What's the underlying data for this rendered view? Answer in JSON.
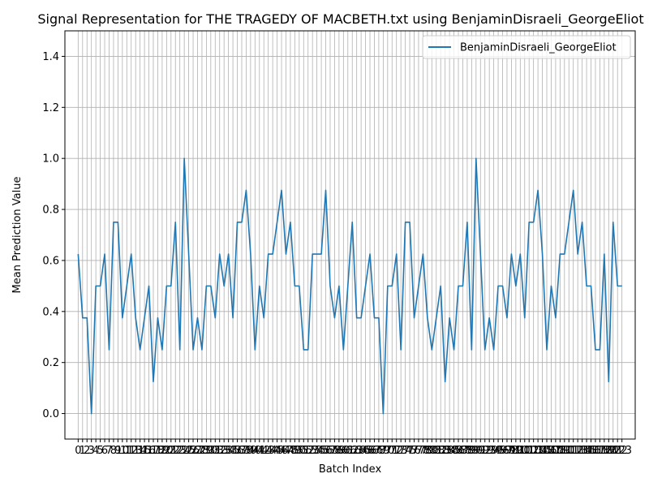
{
  "chart_data": {
    "type": "line",
    "title": "Signal Representation for THE TRAGEDY OF MACBETH.txt using BenjaminDisraeli_GeorgeEliot",
    "xlabel": "Batch Index",
    "ylabel": "Mean Prediction Value",
    "xlim": [
      -3,
      126
    ],
    "ylim": [
      -0.1,
      1.5
    ],
    "yticks": [
      0.0,
      0.2,
      0.4,
      0.6,
      0.8,
      1.0,
      1.2,
      1.4
    ],
    "ytick_labels": [
      "0.0",
      "0.2",
      "0.4",
      "0.6",
      "0.8",
      "1.0",
      "1.2",
      "1.4"
    ],
    "grid": true,
    "legend_position": "top-right",
    "series": [
      {
        "name": "BenjaminDisraeli_GeorgeEliot",
        "color": "#1f77b4",
        "x": [
          0,
          1,
          2,
          3,
          4,
          5,
          6,
          7,
          8,
          9,
          10,
          11,
          12,
          13,
          14,
          15,
          16,
          17,
          18,
          19,
          20,
          21,
          22,
          23,
          24,
          25,
          26,
          27,
          28,
          29,
          30,
          31,
          32,
          33,
          34,
          35,
          36,
          37,
          38,
          39,
          40,
          41,
          42,
          43,
          44,
          45,
          46,
          47,
          48,
          49,
          50,
          51,
          52,
          53,
          54,
          55,
          56,
          57,
          58,
          59,
          60,
          61,
          62,
          63,
          64,
          65,
          66,
          67,
          68,
          69,
          70,
          71,
          72,
          73,
          74,
          75,
          76,
          77,
          78,
          79,
          80,
          81,
          82,
          83,
          84,
          85,
          86,
          87,
          88,
          89,
          90,
          91,
          92,
          93,
          94,
          95,
          96,
          97,
          98,
          99,
          100,
          101,
          102,
          103,
          104,
          105,
          106,
          107,
          108,
          109,
          110,
          111,
          112,
          113,
          114,
          115,
          116,
          117,
          118,
          119,
          120,
          121,
          122,
          123
        ],
        "values": [
          0.625,
          0.375,
          0.375,
          0.0,
          0.5,
          0.5,
          0.625,
          0.25,
          0.75,
          0.75,
          0.375,
          0.5,
          0.625,
          0.375,
          0.25,
          0.375,
          0.5,
          0.125,
          0.375,
          0.25,
          0.5,
          0.5,
          0.75,
          0.25,
          1.0,
          0.625,
          0.25,
          0.375,
          0.25,
          0.5,
          0.5,
          0.375,
          0.625,
          0.5,
          0.625,
          0.375,
          0.75,
          0.75,
          0.875,
          0.625,
          0.25,
          0.5,
          0.375,
          0.625,
          0.625,
          0.75,
          0.875,
          0.625,
          0.75,
          0.5,
          0.5,
          0.25,
          0.25,
          0.625,
          0.625,
          0.625,
          0.875,
          0.5,
          0.375,
          0.5,
          0.25,
          0.5,
          0.75,
          0.375,
          0.375,
          0.5,
          0.625,
          0.375,
          0.375,
          0.0,
          0.5,
          0.5,
          0.625,
          0.25,
          0.75,
          0.75,
          0.375,
          0.5,
          0.625,
          0.375,
          0.25,
          0.375,
          0.5,
          0.125,
          0.375,
          0.25,
          0.5,
          0.5,
          0.75,
          0.25,
          1.0,
          0.625,
          0.25,
          0.375,
          0.25,
          0.5,
          0.5,
          0.375,
          0.625,
          0.5,
          0.625,
          0.375,
          0.75,
          0.75,
          0.875,
          0.625,
          0.25,
          0.5,
          0.375,
          0.625,
          0.625,
          0.75,
          0.875,
          0.625,
          0.75,
          0.5,
          0.5,
          0.25,
          0.25,
          0.625,
          0.125,
          0.75,
          0.5,
          0.5
        ]
      }
    ]
  }
}
